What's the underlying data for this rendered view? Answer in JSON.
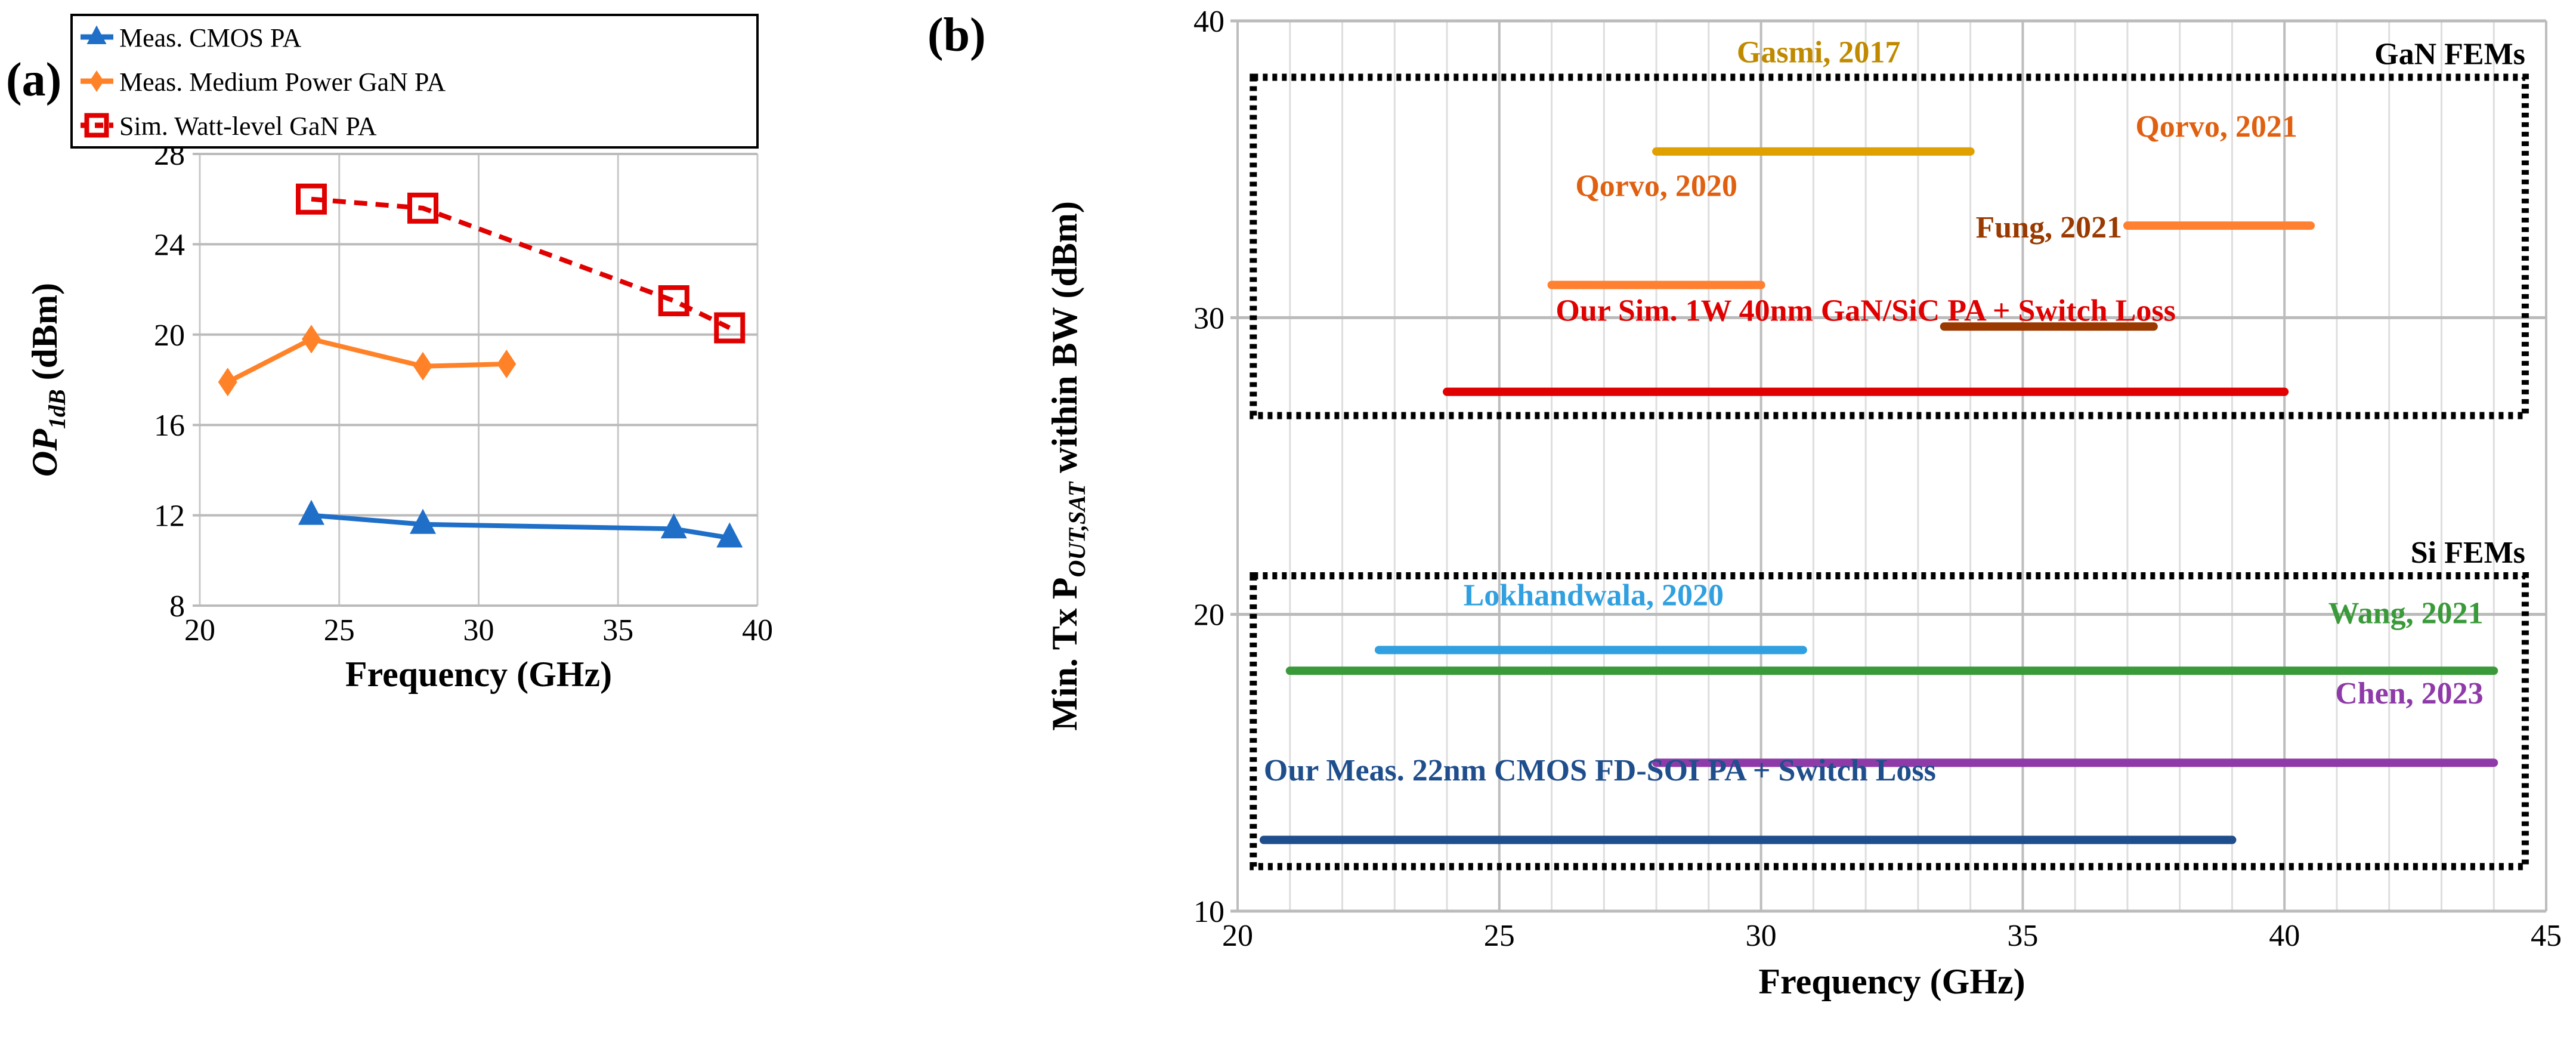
{
  "chart_data": [
    {
      "panel": "(a)",
      "type": "line",
      "title": "",
      "xlabel": "Frequency (GHz)",
      "ylabel": "OP1dB (dBm)",
      "ylabel_main": "OP",
      "ylabel_sub": "1dB",
      "ylabel_unit": " (dBm)",
      "xlim": [
        20,
        40
      ],
      "ylim": [
        8,
        28
      ],
      "xticks": [
        20,
        25,
        30,
        35,
        40
      ],
      "yticks": [
        8,
        12,
        16,
        20,
        24,
        28
      ],
      "grid": true,
      "legend_position": "top",
      "series": [
        {
          "name": "Meas. CMOS PA",
          "color": "#1f6fc8",
          "marker": "triangle",
          "dashed": false,
          "x": [
            24,
            28,
            37,
            39
          ],
          "y": [
            12.0,
            11.6,
            11.4,
            11.0
          ]
        },
        {
          "name": "Meas. Medium Power GaN PA",
          "color": "#ff8228",
          "marker": "diamond",
          "dashed": false,
          "x": [
            21,
            24,
            28,
            31
          ],
          "y": [
            17.9,
            19.8,
            18.6,
            18.7
          ]
        },
        {
          "name": "Sim. Watt-level GaN PA",
          "color": "#e00000",
          "marker": "square-open",
          "dashed": true,
          "x": [
            24,
            28,
            37,
            39
          ],
          "y": [
            26.0,
            25.6,
            21.5,
            20.3
          ]
        }
      ]
    },
    {
      "panel": "(b)",
      "type": "bar",
      "subtype": "horizontal-range",
      "xlabel": "Frequency (GHz)",
      "ylabel_main": "Min. Tx P",
      "ylabel_sub": "OUT,SAT",
      "ylabel_unit": " within BW (dBm)",
      "xlim": [
        20,
        45
      ],
      "ylim": [
        10,
        40
      ],
      "xticks": [
        20,
        25,
        30,
        35,
        40,
        45
      ],
      "yticks": [
        10,
        20,
        30,
        40
      ],
      "grid": true,
      "groups": [
        {
          "name": "GaN FEMs",
          "x_range": [
            20.3,
            44.6
          ],
          "y_range": [
            26.7,
            38.1
          ]
        },
        {
          "name": "Si FEMs",
          "x_range": [
            20.3,
            44.6
          ],
          "y_range": [
            11.5,
            21.3
          ]
        }
      ],
      "series": [
        {
          "name": "Gasmi, 2017",
          "x_start": 28,
          "x_end": 34,
          "y": 35.6,
          "color": "#e0a000",
          "label_color": "#c08a00"
        },
        {
          "name": "Qorvo, 2021",
          "x_start": 37,
          "x_end": 40.5,
          "y": 33.1,
          "color": "#ff8030",
          "label_color": "#e06010"
        },
        {
          "name": "Qorvo, 2020",
          "x_start": 26,
          "x_end": 30,
          "y": 31.1,
          "color": "#ff8030",
          "label_color": "#e06010"
        },
        {
          "name": "Fung, 2021",
          "x_start": 33.5,
          "x_end": 37.5,
          "y": 29.7,
          "color": "#9a3a00",
          "label_color": "#9a3a00"
        },
        {
          "name": "Our Sim. 1W 40nm GaN/SiC PA + Switch Loss",
          "x_start": 24,
          "x_end": 40,
          "y": 27.5,
          "color": "#e00000",
          "label_color": "#e00000"
        },
        {
          "name": "Lokhandwala, 2020",
          "x_start": 22.7,
          "x_end": 30.8,
          "y": 18.8,
          "color": "#30a0e0",
          "label_color": "#30a0e0"
        },
        {
          "name": "Wang, 2021",
          "x_start": 21,
          "x_end": 44,
          "y": 18.1,
          "color": "#3a9a3a",
          "label_color": "#3a9a3a"
        },
        {
          "name": "Chen, 2023",
          "x_start": 28,
          "x_end": 44,
          "y": 15.0,
          "color": "#8e3aa8",
          "label_color": "#8e3aa8"
        },
        {
          "name": "Our Meas. 22nm CMOS FD-SOI PA + Switch Loss",
          "x_start": 20.5,
          "x_end": 39,
          "y": 12.4,
          "color": "#1f4e8c",
          "label_color": "#1f4e8c"
        }
      ]
    }
  ]
}
